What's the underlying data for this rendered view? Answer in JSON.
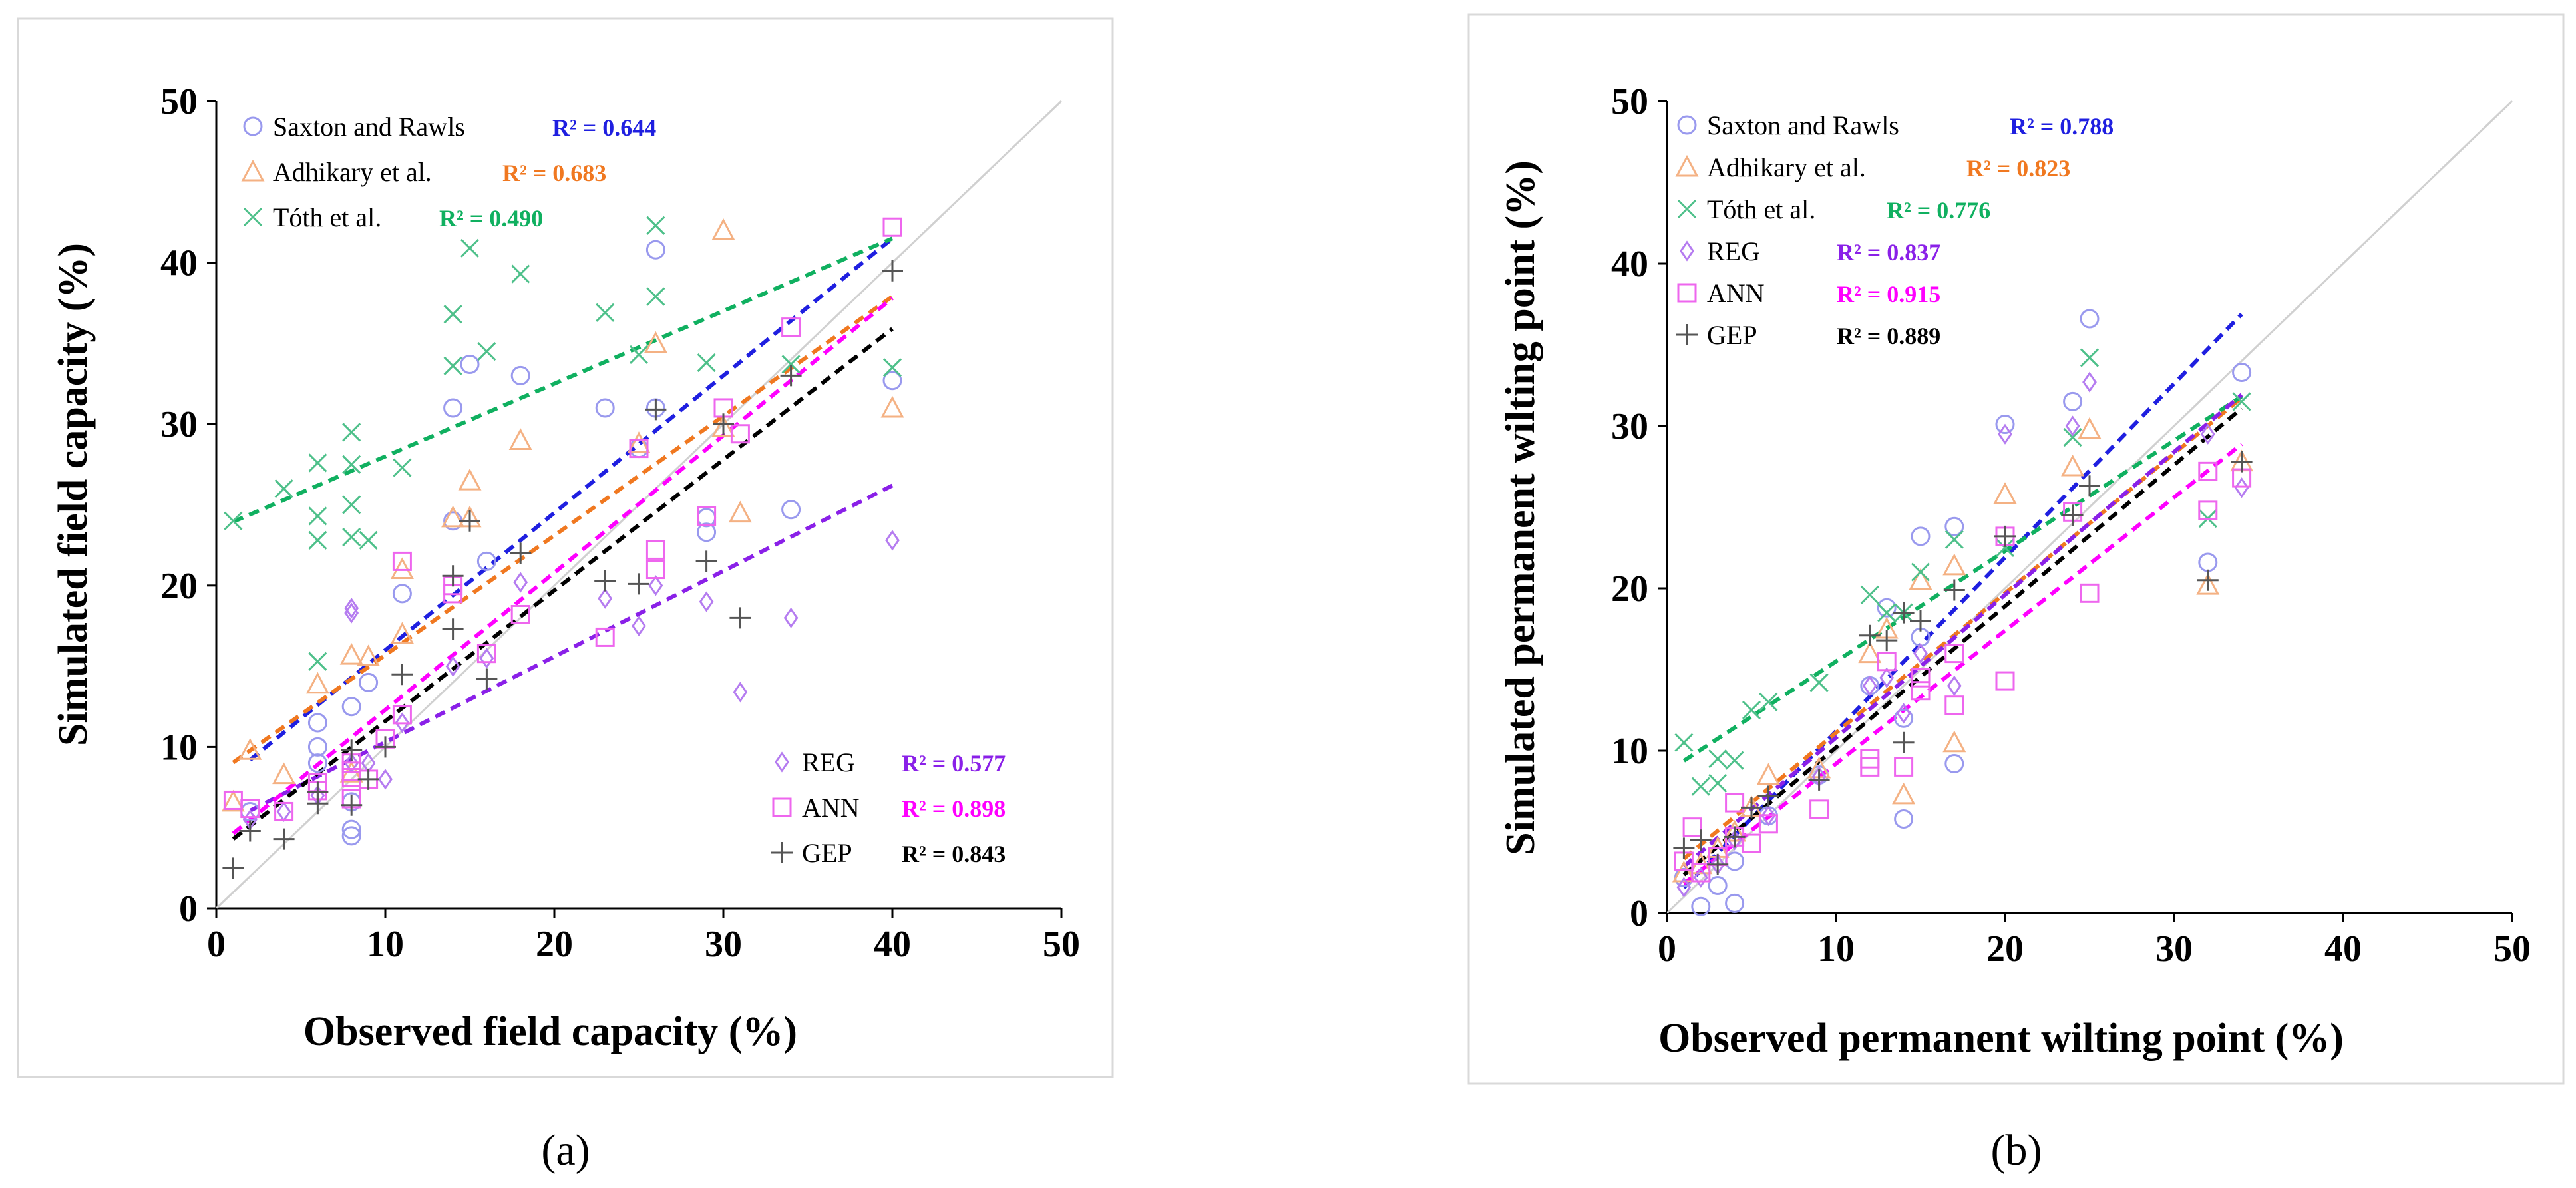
{
  "chart_data": [
    {
      "type": "scatter",
      "panel_label": "(a)",
      "xlabel": "Observed field capacity (%)",
      "ylabel": "Simulated field capacity (%)",
      "xlim": [
        0,
        50
      ],
      "ylim": [
        0,
        50
      ],
      "x_ticks": [
        "0",
        "10",
        "20",
        "30",
        "40",
        "50"
      ],
      "y_ticks": [
        "0",
        "10",
        "20",
        "30",
        "40",
        "50"
      ],
      "one_to_one_line": true,
      "legend_top": [
        0,
        1,
        2
      ],
      "legend_bottom": [
        3,
        4,
        5
      ],
      "series": [
        {
          "name": "Saxton and Rawls",
          "marker": "circle",
          "color": "#9999ee",
          "fit_color": "#1f1fe0",
          "r2_label": "R² = 0.644",
          "fit": [
            7.5,
            0.85
          ],
          "x": [
            2,
            6,
            6,
            6,
            8,
            8,
            8,
            8,
            9,
            11,
            14,
            14,
            15,
            16,
            18,
            23,
            25,
            26,
            26,
            29,
            29,
            34,
            40
          ],
          "y": [
            6,
            10,
            11.5,
            9,
            4.5,
            4.9,
            6.6,
            12.5,
            14,
            19.5,
            31,
            24,
            33.7,
            21.5,
            33,
            31,
            28.5,
            40.8,
            31,
            24.2,
            23.3,
            24.7,
            32.7
          ]
        },
        {
          "name": "Adhikary et al.",
          "marker": "triangle",
          "color": "#f4b183",
          "fit_color": "#f07820",
          "r2_label": "R² = 0.683",
          "fit": [
            8.3,
            0.74
          ],
          "x": [
            1,
            2,
            4,
            6,
            8,
            8,
            9,
            11,
            11,
            14,
            15,
            15,
            18,
            25,
            26,
            30,
            30,
            31,
            40
          ],
          "y": [
            6.6,
            9.8,
            8.3,
            13.9,
            15.7,
            8.4,
            15.6,
            17,
            21,
            24.2,
            26.5,
            24.2,
            29,
            28.8,
            35,
            42,
            29.8,
            24.5,
            31
          ]
        },
        {
          "name": "Tóth et al.",
          "marker": "x",
          "color": "#4ec08a",
          "fit_color": "#10b060",
          "r2_label": "R² = 0.490",
          "fit": [
            23.5,
            0.45
          ],
          "x": [
            1,
            4,
            6,
            6,
            6,
            6,
            8,
            8,
            8,
            8,
            9,
            11,
            14,
            14,
            15,
            16,
            18,
            23,
            25,
            26,
            26,
            29,
            34,
            40
          ],
          "y": [
            24,
            26,
            27.6,
            24.3,
            22.8,
            15.3,
            29.5,
            27.5,
            25,
            23,
            22.8,
            27.3,
            36.8,
            33.6,
            40.9,
            34.5,
            39.3,
            36.9,
            34.3,
            42.3,
            37.9,
            33.8,
            33.7,
            33.5
          ]
        },
        {
          "name": "REG",
          "marker": "diamond",
          "color": "#b57cf0",
          "fit_color": "#8a20e8",
          "r2_label": "R² = 0.577",
          "fit": [
            5.0,
            0.53
          ],
          "x": [
            2,
            4,
            6,
            8,
            8,
            8,
            9,
            10,
            11,
            14,
            16,
            18,
            23,
            25,
            26,
            29,
            31,
            34,
            40
          ],
          "y": [
            5.5,
            6,
            7,
            18.3,
            18.6,
            9,
            9,
            8,
            11.5,
            15,
            15.5,
            20.2,
            19.2,
            17.5,
            20,
            19,
            13.4,
            18,
            22.8
          ]
        },
        {
          "name": "ANN",
          "marker": "square",
          "color": "#ee66ee",
          "fit_color": "#ff00ff",
          "r2_label": "R² = 0.898",
          "fit": [
            3.8,
            0.85
          ],
          "x": [
            1,
            2,
            4,
            6,
            6,
            8,
            8,
            8,
            8,
            9,
            10,
            11,
            11,
            14,
            14,
            16,
            18,
            23,
            25,
            26,
            26,
            29,
            30,
            31,
            34,
            40
          ],
          "y": [
            6.7,
            6.2,
            6,
            7.3,
            7.8,
            8.5,
            6.8,
            9,
            8.1,
            8,
            10.5,
            12,
            21.5,
            19.5,
            20,
            15.8,
            18.2,
            16.8,
            28.5,
            22.2,
            21,
            24.3,
            31,
            29.4,
            36,
            42.2
          ]
        },
        {
          "name": "GEP",
          "marker": "plus",
          "color": "#555555",
          "fit_color": "#000000",
          "r2_label": "R² = 0.843",
          "fit": [
            3.5,
            0.81
          ],
          "x": [
            1,
            2,
            4,
            6,
            6,
            8,
            8,
            9,
            10,
            11,
            14,
            14,
            15,
            16,
            18,
            23,
            25,
            26,
            29,
            30,
            31,
            34,
            40
          ],
          "y": [
            2.5,
            4.8,
            4.3,
            6.5,
            7.2,
            6.4,
            9.8,
            8,
            10,
            14.5,
            17.3,
            20.6,
            24,
            14.2,
            22,
            20.3,
            20.1,
            30.9,
            21.5,
            30,
            18,
            33,
            39.5
          ]
        }
      ]
    },
    {
      "type": "scatter",
      "panel_label": "(b)",
      "xlabel": "Observed permanent wilting point (%)",
      "ylabel": "Simulated permanent wilting point (%)",
      "xlim": [
        0,
        50
      ],
      "ylim": [
        0,
        50
      ],
      "x_ticks": [
        "0",
        "10",
        "20",
        "30",
        "40",
        "50"
      ],
      "y_ticks": [
        "0",
        "10",
        "20",
        "30",
        "40",
        "50"
      ],
      "one_to_one_line": true,
      "legend_top": [
        0,
        1,
        2,
        3,
        4,
        5
      ],
      "legend_bottom": [],
      "series": [
        {
          "name": "Saxton and Rawls",
          "marker": "circle",
          "color": "#9999ee",
          "fit_color": "#1f1fe0",
          "r2_label": "R² = 0.788",
          "fit": [
            0.5,
            1.07
          ],
          "x": [
            1,
            2,
            3,
            4,
            4,
            6,
            9,
            12,
            13,
            14,
            14,
            15,
            15,
            17,
            17,
            20,
            24,
            25,
            32,
            34
          ],
          "y": [
            2.2,
            0.4,
            1.7,
            0.6,
            3.2,
            6,
            8.5,
            14,
            18.8,
            5.8,
            12,
            23.2,
            17,
            23.8,
            9.2,
            30.1,
            31.5,
            36.6,
            21.6,
            33.3
          ]
        },
        {
          "name": "Adhikary et al.",
          "marker": "triangle",
          "color": "#f4b183",
          "fit_color": "#f07820",
          "r2_label": "R² = 0.823",
          "fit": [
            2.5,
            0.86
          ],
          "x": [
            1,
            2,
            3,
            4,
            5,
            6,
            9,
            12,
            13,
            14,
            15,
            17,
            17,
            20,
            24,
            25,
            32,
            34
          ],
          "y": [
            2.5,
            3,
            4,
            5,
            6.5,
            8.5,
            8.9,
            16,
            17.5,
            7.3,
            20.5,
            21.4,
            10.5,
            25.8,
            27.5,
            29.8,
            20.2,
            27.8
          ]
        },
        {
          "name": "Tóth et al.",
          "marker": "x",
          "color": "#4ec08a",
          "fit_color": "#10b060",
          "r2_label": "R² = 0.776",
          "fit": [
            8.7,
            0.68
          ],
          "x": [
            1,
            2,
            3,
            3,
            4,
            5,
            6,
            9,
            12,
            13,
            14,
            15,
            17,
            20,
            24,
            25,
            32,
            34
          ],
          "y": [
            10.5,
            7.8,
            9.5,
            8,
            9.4,
            12.5,
            13,
            14.2,
            19.6,
            18.5,
            18.5,
            21,
            23,
            22.5,
            29.3,
            34.2,
            24.3,
            31.5
          ]
        },
        {
          "name": "REG",
          "marker": "diamond",
          "color": "#b57cf0",
          "fit_color": "#8a20e8",
          "r2_label": "R² = 0.837",
          "fit": [
            2.0,
            0.88
          ],
          "x": [
            1,
            2,
            3,
            4,
            6,
            9,
            12,
            13,
            14,
            15,
            17,
            20,
            24,
            25,
            32,
            34
          ],
          "y": [
            1.6,
            2.2,
            3,
            4.5,
            6,
            8.4,
            14,
            14.5,
            12.3,
            16,
            14,
            29.5,
            30,
            32.7,
            29.5,
            26.2
          ]
        },
        {
          "name": "ANN",
          "marker": "square",
          "color": "#ee66ee",
          "fit_color": "#ff00ff",
          "r2_label": "R² = 0.915",
          "fit": [
            1.0,
            0.82
          ],
          "x": [
            1,
            1.5,
            2,
            3,
            4,
            4,
            5,
            6,
            9,
            12,
            12,
            13,
            14,
            15,
            15,
            17,
            17,
            20,
            20,
            24,
            25,
            32,
            32,
            34
          ],
          "y": [
            3.2,
            5.3,
            2.5,
            3.5,
            6.8,
            4.7,
            4.3,
            5.5,
            6.4,
            9.5,
            9,
            15.5,
            9,
            14.5,
            13.7,
            16,
            12.8,
            14.3,
            23.2,
            24.7,
            19.7,
            24.8,
            27.2,
            26.8
          ]
        },
        {
          "name": "GEP",
          "marker": "plus",
          "color": "#555555",
          "fit_color": "#000000",
          "r2_label": "R² = 0.889",
          "fit": [
            1.5,
            0.87
          ],
          "x": [
            1,
            2,
            3,
            4,
            5,
            6,
            9,
            12,
            13,
            14,
            14,
            15,
            17,
            20,
            24,
            25,
            32,
            34
          ],
          "y": [
            4,
            4.5,
            3,
            4.7,
            6.5,
            7.2,
            8.2,
            17.1,
            16.8,
            10.5,
            18.5,
            18,
            19.9,
            23.2,
            24.5,
            26.3,
            20.5,
            27.8
          ]
        }
      ]
    }
  ]
}
